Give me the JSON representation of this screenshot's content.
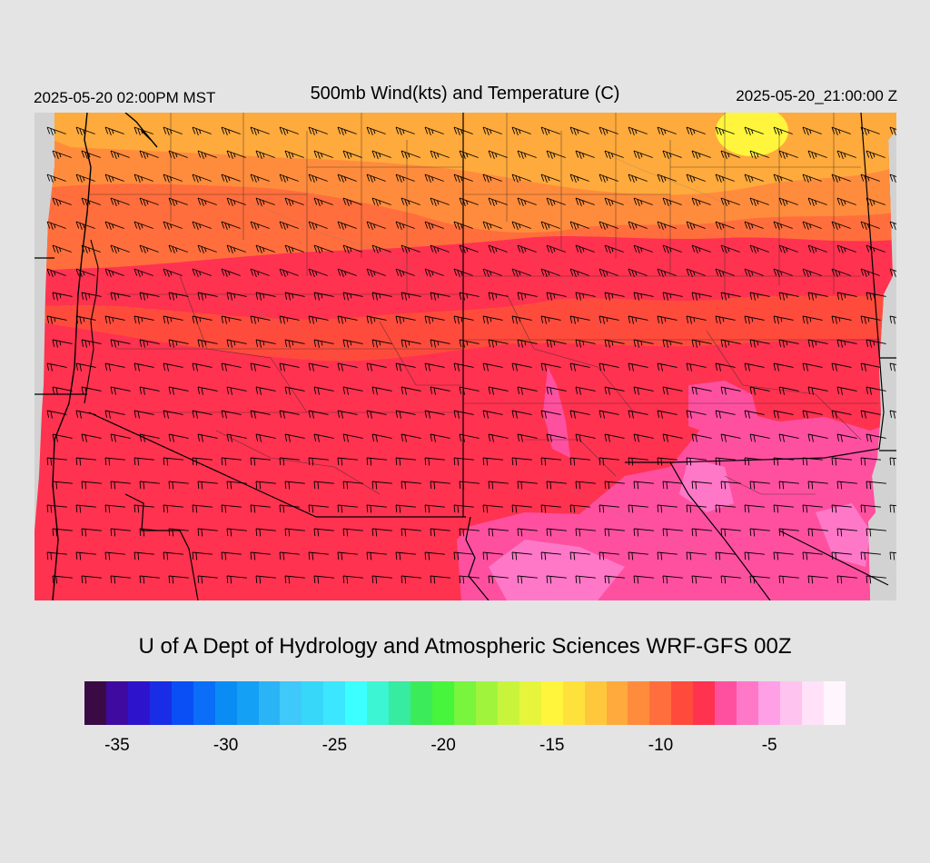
{
  "header": {
    "local_time": "2025-05-20 02:00PM MST",
    "title": "500mb Wind(kts) and Temperature (C)",
    "valid_time": "2025-05-20_21:00:00 Z"
  },
  "credit": "U of A Dept of Hydrology and Atmospheric Sciences WRF-GFS 00Z",
  "colorbar": {
    "colors": [
      "#3a0a45",
      "#3f0aa0",
      "#2d14cc",
      "#1a2de6",
      "#0a4ff5",
      "#0a6ef8",
      "#0a8cf5",
      "#14a0f5",
      "#2ab4f5",
      "#3fc8fa",
      "#37d7fa",
      "#3ce6ff",
      "#3cffff",
      "#3cf5d2",
      "#37eba0",
      "#3ceb5a",
      "#46f53c",
      "#78f53c",
      "#a0f53c",
      "#c8f53c",
      "#e6f53c",
      "#fff53c",
      "#ffe13c",
      "#ffc83c",
      "#ffaa3c",
      "#ff8c3c",
      "#ff6e3c",
      "#ff4b3c",
      "#ff3250",
      "#ff50a0",
      "#ff78c8",
      "#ffa0e6",
      "#ffc3f0",
      "#ffe1f8",
      "#fff5fd"
    ],
    "tick_labels": [
      "-35",
      "-30",
      "-25",
      "-20",
      "-15",
      "-10",
      "-5"
    ],
    "tick_values": [
      -35,
      -30,
      -25,
      -20,
      -15,
      -10,
      -5
    ],
    "min": -36,
    "max": -1
  },
  "map": {
    "temperature_bands": [
      {
        "range": "-13 to -12",
        "color": "#ffaa3c"
      },
      {
        "range": "-12 to -11",
        "color": "#ff8c3c"
      },
      {
        "range": "-11 to -10",
        "color": "#ff6e3c"
      },
      {
        "range": "-10 to -9",
        "color": "#ff4b3c"
      },
      {
        "range": "-9 to -8",
        "color": "#ff3250"
      },
      {
        "range": "-8 to -7",
        "color": "#ff50a0"
      },
      {
        "range": "-7 to -6",
        "color": "#ff78c8"
      }
    ],
    "cold_spot_color": "#fff53c"
  }
}
